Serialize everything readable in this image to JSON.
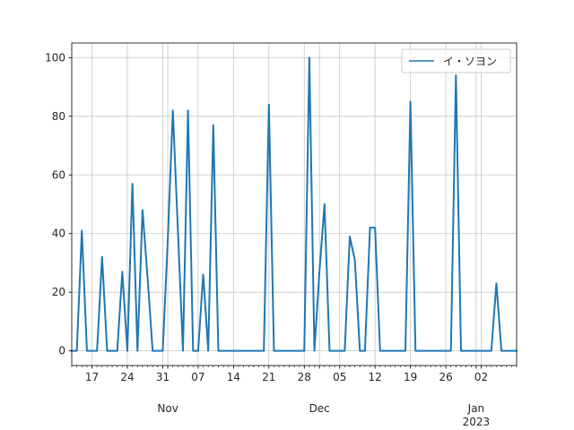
{
  "chart_data": {
    "type": "line",
    "title": "",
    "xlabel": "",
    "ylabel": "",
    "xlim": [
      "2022-10-13",
      "2023-01-09"
    ],
    "ylim": [
      -5,
      105
    ],
    "grid": true,
    "legend": "top-right",
    "series": [
      {
        "name": "イ・ソヨン",
        "color": "#1f77b4",
        "x": [
          "2022-10-13",
          "2022-10-14",
          "2022-10-15",
          "2022-10-16",
          "2022-10-17",
          "2022-10-18",
          "2022-10-19",
          "2022-10-20",
          "2022-10-21",
          "2022-10-22",
          "2022-10-23",
          "2022-10-24",
          "2022-10-25",
          "2022-10-26",
          "2022-10-27",
          "2022-10-28",
          "2022-10-29",
          "2022-10-30",
          "2022-10-31",
          "2022-11-01",
          "2022-11-02",
          "2022-11-03",
          "2022-11-04",
          "2022-11-05",
          "2022-11-06",
          "2022-11-07",
          "2022-11-08",
          "2022-11-09",
          "2022-11-10",
          "2022-11-11",
          "2022-11-12",
          "2022-11-13",
          "2022-11-14",
          "2022-11-15",
          "2022-11-16",
          "2022-11-17",
          "2022-11-18",
          "2022-11-19",
          "2022-11-20",
          "2022-11-21",
          "2022-11-22",
          "2022-11-23",
          "2022-11-24",
          "2022-11-25",
          "2022-11-26",
          "2022-11-27",
          "2022-11-28",
          "2022-11-29",
          "2022-11-30",
          "2022-12-01",
          "2022-12-02",
          "2022-12-03",
          "2022-12-04",
          "2022-12-05",
          "2022-12-06",
          "2022-12-07",
          "2022-12-08",
          "2022-12-09",
          "2022-12-10",
          "2022-12-11",
          "2022-12-12",
          "2022-12-13",
          "2022-12-14",
          "2022-12-15",
          "2022-12-16",
          "2022-12-17",
          "2022-12-18",
          "2022-12-19",
          "2022-12-20",
          "2022-12-21",
          "2022-12-22",
          "2022-12-23",
          "2022-12-24",
          "2022-12-25",
          "2022-12-26",
          "2022-12-27",
          "2022-12-28",
          "2022-12-29",
          "2022-12-30",
          "2022-12-31",
          "2023-01-01",
          "2023-01-02",
          "2023-01-03",
          "2023-01-04",
          "2023-01-05",
          "2023-01-06",
          "2023-01-07",
          "2023-01-08",
          "2023-01-09"
        ],
        "values": [
          0,
          0,
          41,
          0,
          0,
          0,
          32,
          0,
          0,
          0,
          27,
          0,
          57,
          0,
          48,
          25,
          0,
          0,
          0,
          38,
          82,
          41,
          0,
          82,
          0,
          0,
          26,
          0,
          77,
          0,
          0,
          0,
          0,
          0,
          0,
          0,
          0,
          0,
          0,
          84,
          0,
          0,
          0,
          0,
          0,
          0,
          0,
          100,
          0,
          27,
          50,
          0,
          0,
          0,
          0,
          39,
          31,
          0,
          0,
          42,
          42,
          0,
          0,
          0,
          0,
          0,
          0,
          85,
          0,
          0,
          0,
          0,
          0,
          0,
          0,
          0,
          94,
          0,
          0,
          0,
          0,
          0,
          0,
          0,
          23,
          0,
          0,
          0,
          0
        ]
      }
    ],
    "x_ticks_major": [
      {
        "date": "2022-10-17",
        "label": "17"
      },
      {
        "date": "2022-10-24",
        "label": "24"
      },
      {
        "date": "2022-10-31",
        "label": "31"
      },
      {
        "date": "2022-11-07",
        "label": "07"
      },
      {
        "date": "2022-11-14",
        "label": "14"
      },
      {
        "date": "2022-11-21",
        "label": "21"
      },
      {
        "date": "2022-11-28",
        "label": "28"
      },
      {
        "date": "2022-12-05",
        "label": "05"
      },
      {
        "date": "2022-12-12",
        "label": "12"
      },
      {
        "date": "2022-12-19",
        "label": "19"
      },
      {
        "date": "2022-12-26",
        "label": "26"
      },
      {
        "date": "2023-01-02",
        "label": "02"
      }
    ],
    "x_ticks_month": [
      {
        "date": "2022-11-01",
        "label": "Nov"
      },
      {
        "date": "2022-12-01",
        "label": "Dec"
      },
      {
        "date": "2023-01-01",
        "label": "Jan",
        "sublabel": "2023"
      }
    ],
    "y_ticks": [
      0,
      20,
      40,
      60,
      80,
      100
    ]
  }
}
